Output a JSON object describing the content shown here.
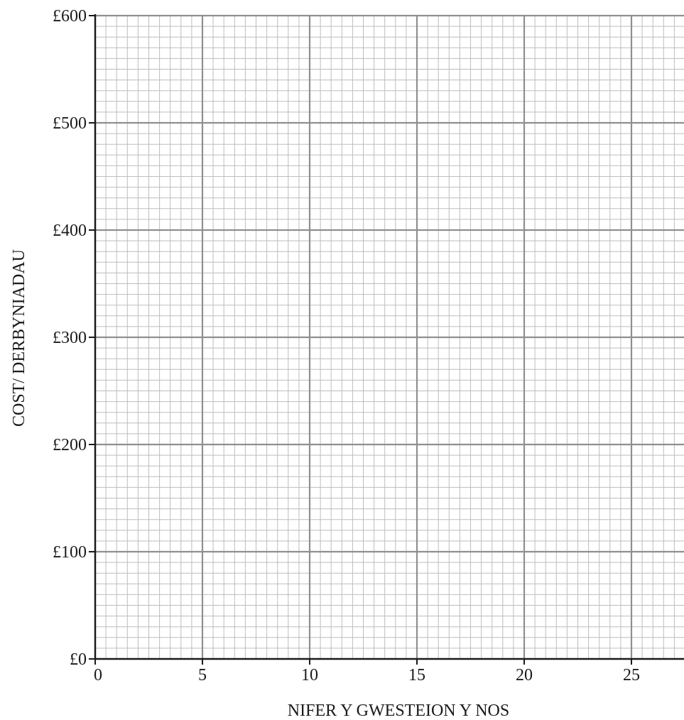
{
  "chart_data": {
    "type": "scatter",
    "title": "",
    "xlabel": "NIFER Y GWESTEION Y NOS",
    "ylabel": "COST/ DERBYNIADAU",
    "xlim": [
      0,
      27.5
    ],
    "ylim": [
      0,
      600
    ],
    "x_ticks": [
      0,
      5,
      10,
      15,
      20,
      25
    ],
    "x_tick_labels": [
      "0",
      "5",
      "10",
      "15",
      "20",
      "25"
    ],
    "y_ticks": [
      0,
      100,
      200,
      300,
      400,
      500,
      600
    ],
    "y_tick_labels": [
      "£0",
      "£100",
      "£200",
      "£300",
      "£400",
      "£500",
      "£600"
    ],
    "grid": true,
    "grid_minor_x_step": 0.5,
    "grid_minor_y_step": 10,
    "series": [],
    "colors": {
      "minor_grid": "#bdbdbd",
      "major_grid": "#8f8f8f",
      "axis": "#1a1a1a"
    }
  }
}
